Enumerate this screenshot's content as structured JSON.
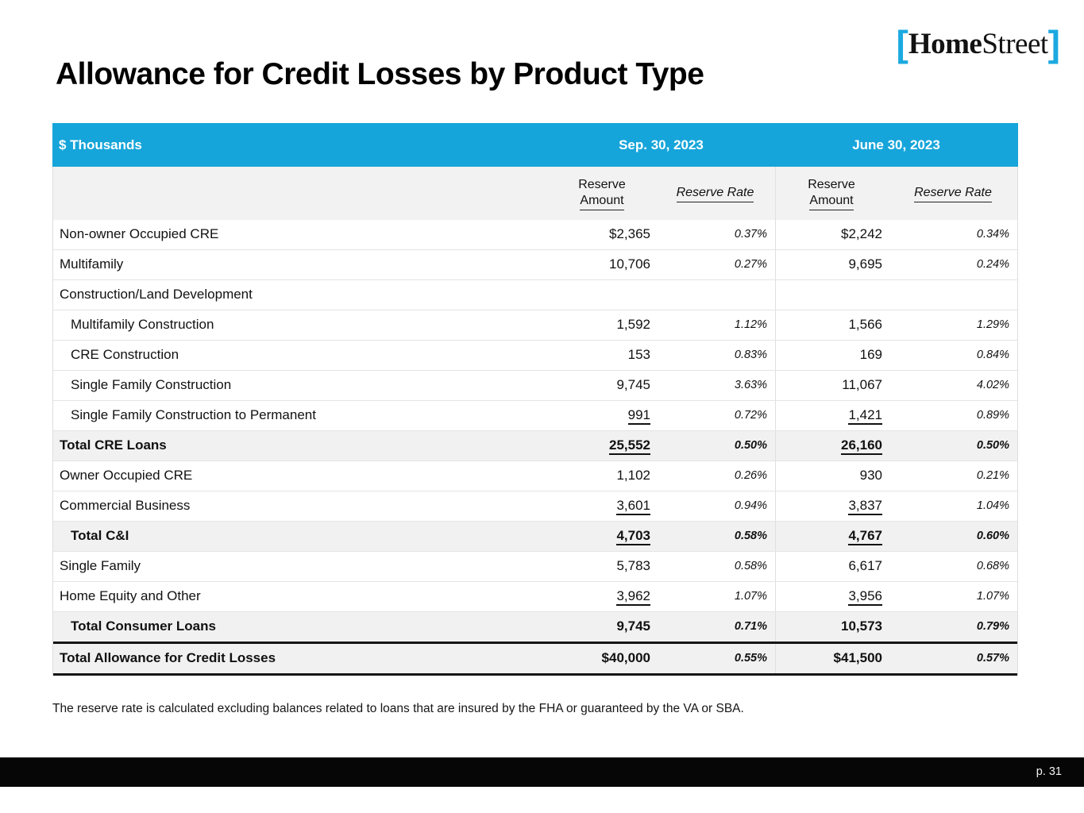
{
  "logo": {
    "bracket_left": "[",
    "home": "Home",
    "street": "Street",
    "bracket_right": "]"
  },
  "page_title": "Allowance for Credit Losses by Product Type",
  "colors": {
    "accent_cyan": "#16A5DA",
    "logo_cyan": "#1CA9E0",
    "total_row_bg": "#f1f1f1",
    "footer_black": "#060606"
  },
  "table": {
    "unit_label": "$ Thousands",
    "period1": "Sep. 30, 2023",
    "period2": "June 30, 2023",
    "col_reserve_amount_line1": "Reserve",
    "col_reserve_amount_line2": "Amount",
    "col_reserve_rate": "Reserve Rate",
    "rows": [
      {
        "label": "Non-owner Occupied CRE",
        "a1": "$2,365",
        "r1": "0.37%",
        "a2": "$2,242",
        "r2": "0.34%",
        "indent": false,
        "total": false,
        "grand": false,
        "u": false
      },
      {
        "label": "Multifamily",
        "a1": "10,706",
        "r1": "0.27%",
        "a2": "9,695",
        "r2": "0.24%",
        "indent": false,
        "total": false,
        "grand": false,
        "u": false
      },
      {
        "label": "Construction/Land Development",
        "a1": "",
        "r1": "",
        "a2": "",
        "r2": "",
        "indent": false,
        "total": false,
        "grand": false,
        "u": false
      },
      {
        "label": "Multifamily Construction",
        "a1": "1,592",
        "r1": "1.12%",
        "a2": "1,566",
        "r2": "1.29%",
        "indent": true,
        "total": false,
        "grand": false,
        "u": false
      },
      {
        "label": "CRE Construction",
        "a1": "153",
        "r1": "0.83%",
        "a2": "169",
        "r2": "0.84%",
        "indent": true,
        "total": false,
        "grand": false,
        "u": false
      },
      {
        "label": "Single Family Construction",
        "a1": "9,745",
        "r1": "3.63%",
        "a2": "11,067",
        "r2": "4.02%",
        "indent": true,
        "total": false,
        "grand": false,
        "u": false
      },
      {
        "label": "Single Family Construction to Permanent",
        "a1": "991",
        "r1": "0.72%",
        "a2": "1,421",
        "r2": "0.89%",
        "indent": true,
        "total": false,
        "grand": false,
        "u": true
      },
      {
        "label": "Total CRE Loans",
        "a1": "25,552",
        "r1": "0.50%",
        "a2": "26,160",
        "r2": "0.50%",
        "indent": false,
        "total": true,
        "grand": false,
        "u": true
      },
      {
        "label": "Owner Occupied CRE",
        "a1": "1,102",
        "r1": "0.26%",
        "a2": "930",
        "r2": "0.21%",
        "indent": false,
        "total": false,
        "grand": false,
        "u": false
      },
      {
        "label": "Commercial Business",
        "a1": "3,601",
        "r1": "0.94%",
        "a2": "3,837",
        "r2": "1.04%",
        "indent": false,
        "total": false,
        "grand": false,
        "u": true
      },
      {
        "label": "Total C&I",
        "a1": "4,703",
        "r1": "0.58%",
        "a2": "4,767",
        "r2": "0.60%",
        "indent": true,
        "total": true,
        "grand": false,
        "u": true
      },
      {
        "label": "Single Family",
        "a1": "5,783",
        "r1": "0.58%",
        "a2": "6,617",
        "r2": "0.68%",
        "indent": false,
        "total": false,
        "grand": false,
        "u": false
      },
      {
        "label": "Home Equity and Other",
        "a1": "3,962",
        "r1": "1.07%",
        "a2": "3,956",
        "r2": "1.07%",
        "indent": false,
        "total": false,
        "grand": false,
        "u": true
      },
      {
        "label": "Total Consumer Loans",
        "a1": "9,745",
        "r1": "0.71%",
        "a2": "10,573",
        "r2": "0.79%",
        "indent": true,
        "total": true,
        "grand": false,
        "u": false
      },
      {
        "label": "Total Allowance for Credit Losses",
        "a1": "$40,000",
        "r1": "0.55%",
        "a2": "$41,500",
        "r2": "0.57%",
        "indent": false,
        "total": true,
        "grand": true,
        "u": false
      }
    ]
  },
  "footnote": "The reserve rate is calculated excluding balances related to loans that are insured by the FHA or guaranteed by the VA or SBA.",
  "footer": {
    "page_label": "p. 31"
  }
}
